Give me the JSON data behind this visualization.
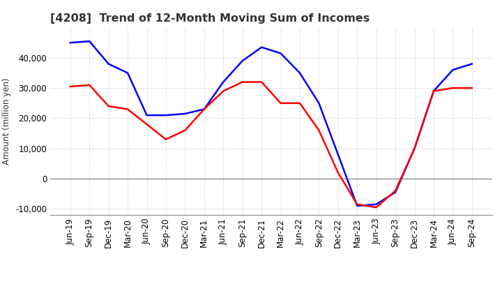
{
  "title": "[4208]  Trend of 12-Month Moving Sum of Incomes",
  "ylabel": "Amount (million yen)",
  "x_labels": [
    "Jun-19",
    "Sep-19",
    "Dec-19",
    "Mar-20",
    "Jun-20",
    "Sep-20",
    "Dec-20",
    "Mar-21",
    "Jun-21",
    "Sep-21",
    "Dec-21",
    "Mar-22",
    "Jun-22",
    "Sep-22",
    "Dec-22",
    "Mar-23",
    "Jun-23",
    "Sep-23",
    "Dec-23",
    "Mar-24",
    "Jun-24",
    "Sep-24"
  ],
  "ordinary_income": [
    45000,
    45500,
    38000,
    35000,
    21000,
    21000,
    21500,
    23000,
    32000,
    39000,
    43500,
    41500,
    35000,
    25000,
    8000,
    -9000,
    -8500,
    -4500,
    10000,
    29000,
    36000,
    38000
  ],
  "net_income": [
    30500,
    31000,
    24000,
    23000,
    18000,
    13000,
    16000,
    23000,
    29000,
    32000,
    32000,
    25000,
    25000,
    16000,
    2000,
    -8500,
    -9500,
    -4000,
    10000,
    29000,
    30000,
    30000
  ],
  "ordinary_income_color": "#0000FF",
  "net_income_color": "#FF0000",
  "background_color": "#FFFFFF",
  "plot_bg_color": "#FFFFFF",
  "grid_color": "#BBBBBB",
  "title_color": "#333333",
  "ylim": [
    -12000,
    50000
  ],
  "yticks": [
    -10000,
    0,
    10000,
    20000,
    30000,
    40000
  ],
  "title_fontsize": 11.5,
  "axis_fontsize": 8.5,
  "ylabel_fontsize": 8.5,
  "legend_fontsize": 9
}
